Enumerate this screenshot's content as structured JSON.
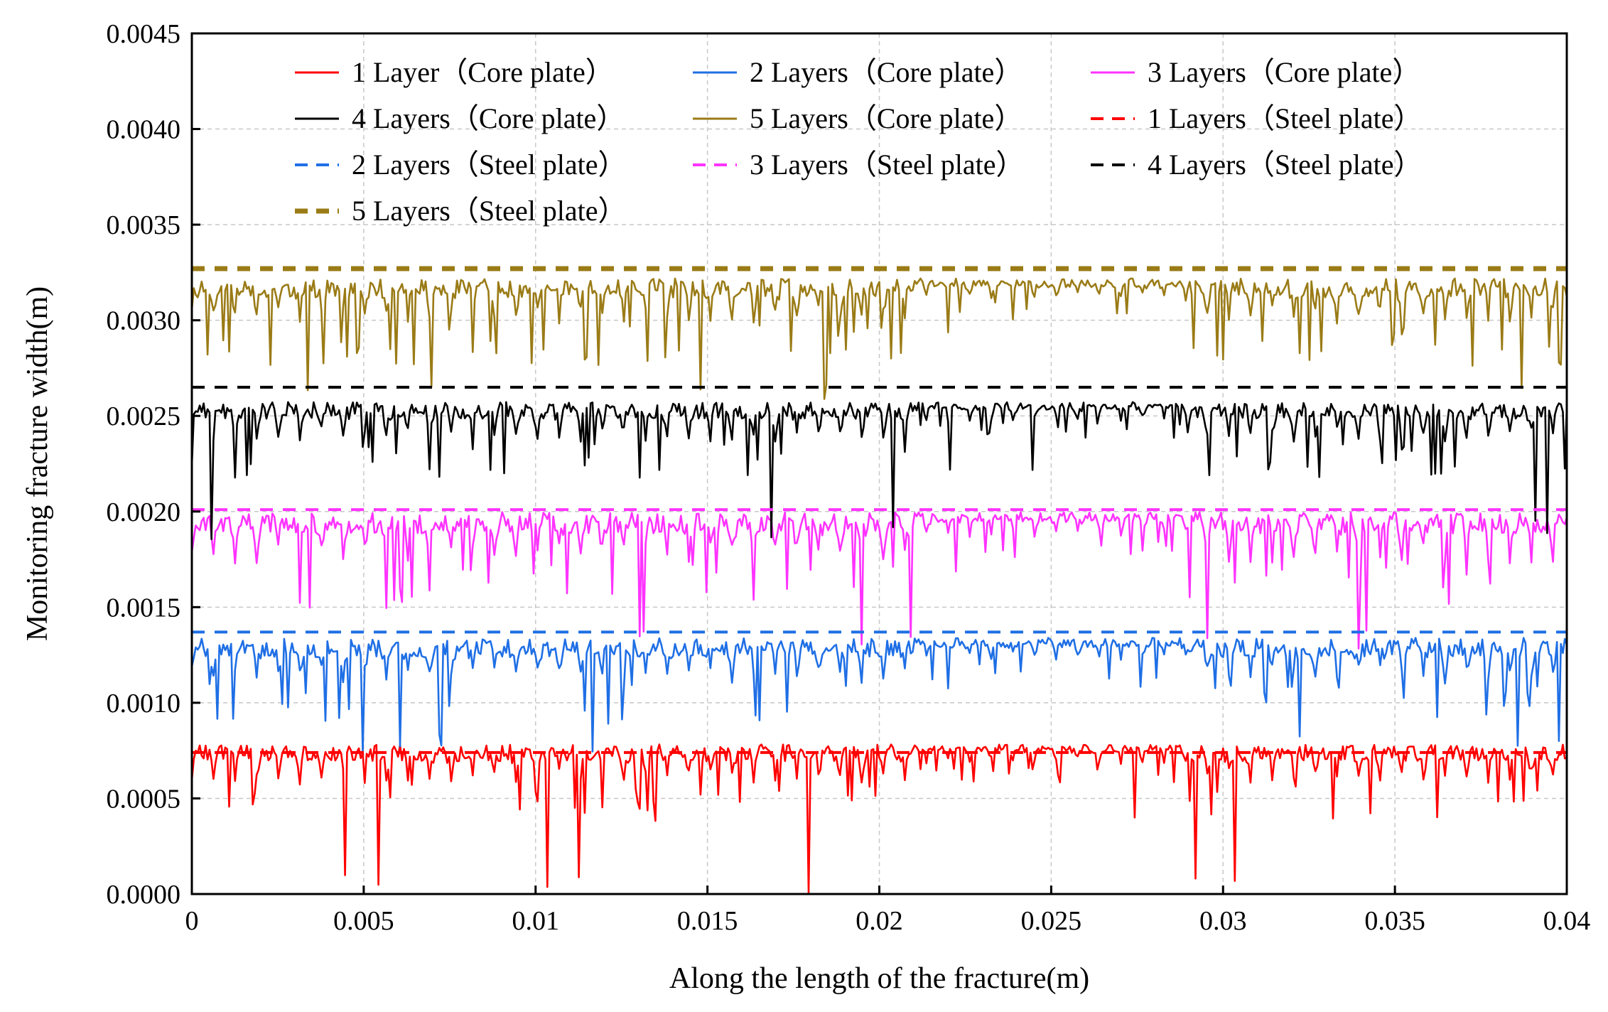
{
  "chart_data": {
    "type": "line",
    "title": "",
    "xlabel": "Along the length of the fracture(m)",
    "ylabel": "Monitoring fracture width(m)",
    "xlim": [
      0,
      0.04
    ],
    "ylim": [
      0,
      0.0045
    ],
    "x_ticks": [
      0,
      0.005,
      0.01,
      0.015,
      0.02,
      0.025,
      0.03,
      0.035,
      0.04
    ],
    "x_tick_labels": [
      "0",
      "0.005",
      "0.01",
      "0.015",
      "0.02",
      "0.025",
      "0.03",
      "0.035",
      "0.04"
    ],
    "y_ticks": [
      0,
      0.0005,
      0.001,
      0.0015,
      0.002,
      0.0025,
      0.003,
      0.0035,
      0.004,
      0.0045
    ],
    "y_tick_labels": [
      "0.0000",
      "0.0005",
      "0.0010",
      "0.0015",
      "0.0020",
      "0.0025",
      "0.0030",
      "0.0035",
      "0.0040",
      "0.0045"
    ],
    "grid": true,
    "legend_position": "top-inside",
    "series": [
      {
        "name": "1 Layer（Core plate）",
        "color": "#ff0000",
        "style": "solid",
        "baseline": 0.00073,
        "amplitude": 0.00035,
        "deep_dip_floor": 0.0
      },
      {
        "name": "2 Layers（Core plate）",
        "color": "#1f6fe5",
        "style": "solid",
        "baseline": 0.00128,
        "amplitude": 0.0004,
        "deep_dip_floor": 0.00072
      },
      {
        "name": "3 Layers（Core plate）",
        "color": "#ff33ff",
        "style": "solid",
        "baseline": 0.00193,
        "amplitude": 0.00045,
        "deep_dip_floor": 0.00128
      },
      {
        "name": "4 Layers（Core plate）",
        "color": "#000000",
        "style": "solid",
        "baseline": 0.00252,
        "amplitude": 0.00035,
        "deep_dip_floor": 0.00185
      },
      {
        "name": "5 Layers（Core plate）",
        "color": "#9a7b16",
        "style": "solid",
        "baseline": 0.00316,
        "amplitude": 0.0004,
        "deep_dip_floor": 0.00255
      },
      {
        "name": "1 Layers（Steel plate）",
        "color": "#ff0000",
        "style": "dashed",
        "value": 0.00074
      },
      {
        "name": "2 Layers（Steel plate）",
        "color": "#1f6fe5",
        "style": "dashed",
        "value": 0.00137
      },
      {
        "name": "3 Layers（Steel plate）",
        "color": "#ff33ff",
        "style": "dashed",
        "value": 0.00201
      },
      {
        "name": "4 Layers（Steel plate）",
        "color": "#000000",
        "style": "dashed",
        "value": 0.00265
      },
      {
        "name": "5 Layers（Steel plate）",
        "color": "#9a7b16",
        "style": "dashed",
        "value": 0.00327
      }
    ]
  }
}
